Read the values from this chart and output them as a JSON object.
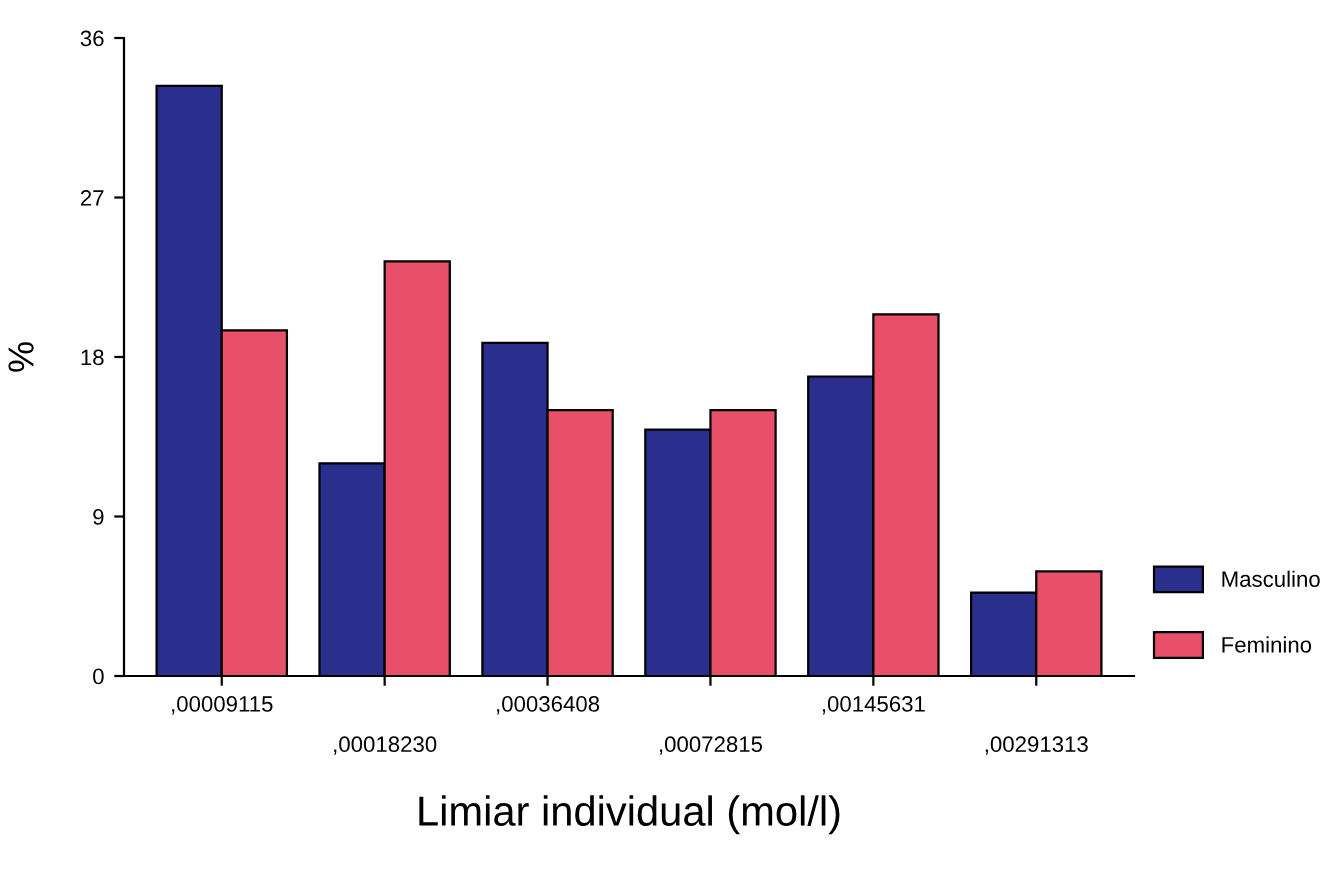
{
  "chart_data": {
    "type": "bar",
    "xlabel": "Limiar individual (mol/l)",
    "ylabel": "%",
    "categories": [
      ",00009115",
      ",00018230",
      ",00036408",
      ",00072815",
      ",00145631",
      ",00291313"
    ],
    "series": [
      {
        "name": "Masculino",
        "color": "#2a2e8c",
        "values": [
          33.3,
          12.0,
          18.8,
          13.9,
          16.9,
          4.7
        ]
      },
      {
        "name": "Feminino",
        "color": "#e8506a",
        "values": [
          19.5,
          23.4,
          15.0,
          15.0,
          20.4,
          5.9
        ]
      }
    ],
    "ylim": [
      0,
      36
    ],
    "yticks": [
      0,
      9,
      18,
      27,
      36
    ],
    "grid": false,
    "legend": "right"
  }
}
